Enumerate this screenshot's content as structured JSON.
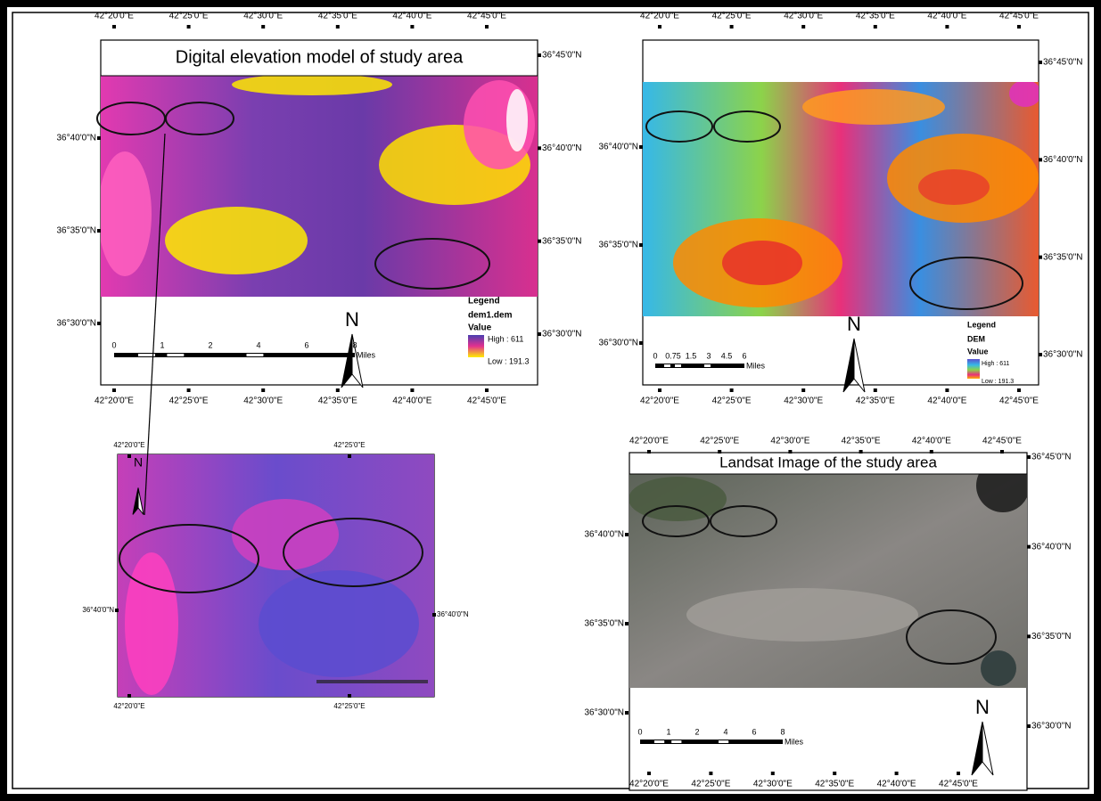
{
  "panels": [
    {
      "title": "Digital elevation model of study area",
      "top_ticks": [
        "42°20'0\"E",
        "42°25'0\"E",
        "42°30'0\"E",
        "42°35'0\"E",
        "42°40'0\"E",
        "42°45'0\"E"
      ],
      "bottom_ticks": [
        "42°20'0\"E",
        "42°25'0\"E",
        "42°30'0\"E",
        "42°35'0\"E",
        "42°40'0\"E",
        "42°45'0\"E"
      ],
      "left_ticks": [
        "36°40'0\"N",
        "36°35'0\"N",
        "36°30'0\"N"
      ],
      "right_ticks": [
        "36°45'0\"N",
        "36°40'0\"N",
        "36°35'0\"N",
        "36°30'0\"N"
      ],
      "legend": [
        "Legend",
        "dem1.dem",
        "Value",
        "High : 611",
        "Low : 191.3"
      ],
      "scale": [
        "0",
        "1",
        "2",
        "4",
        "6",
        "8",
        "Miles"
      ],
      "north": "N"
    },
    {
      "top_ticks": [
        "42°20'0\"E",
        "42°25'0\"E",
        "42°30'0\"E",
        "42°35'0\"E",
        "42°40'0\"E",
        "42°45'0\"E"
      ],
      "bottom_ticks": [
        "42°20'0\"E",
        "42°25'0\"E",
        "42°30'0\"E",
        "42°35'0\"E",
        "42°40'0\"E",
        "42°45'0\"E"
      ],
      "left_ticks": [
        "36°40'0\"N",
        "36°35'0\"N",
        "36°30'0\"N"
      ],
      "right_ticks": [
        "36°45'0\"N",
        "36°40'0\"N",
        "36°35'0\"N",
        "36°30'0\"N"
      ],
      "legend": [
        "Legend",
        "DEM",
        "Value",
        "High : 611",
        "Low : 191.3"
      ],
      "scale": [
        "0",
        "0.75",
        "1.5",
        "3",
        "4.5",
        "6",
        "Miles"
      ],
      "north": "N"
    },
    {
      "top_ticks": [
        "42°20'0\"E",
        "42°25'0\"E"
      ],
      "bottom_ticks": [
        "42°20'0\"E",
        "42°25'0\"E"
      ],
      "left_ticks": [
        "36°40'0\"N"
      ],
      "right_ticks": [
        "36°40'0\"N"
      ],
      "north": "N"
    },
    {
      "title": "Landsat Image of the study area",
      "top_ticks": [
        "42°20'0\"E",
        "42°25'0\"E",
        "42°30'0\"E",
        "42°35'0\"E",
        "42°40'0\"E",
        "42°45'0\"E"
      ],
      "bottom_ticks": [
        "42°20'0\"E",
        "42°25'0\"E",
        "42°30'0\"E",
        "42°35'0\"E",
        "42°40'0\"E",
        "42°45'0\"E"
      ],
      "left_ticks": [
        "36°40'0\"N",
        "36°35'0\"N",
        "36°30'0\"N"
      ],
      "right_ticks": [
        "36°45'0\"N",
        "36°40'0\"N",
        "36°35'0\"N",
        "36°30'0\"N"
      ],
      "scale": [
        "0",
        "1",
        "2",
        "4",
        "6",
        "8",
        "Miles"
      ],
      "north": "N"
    }
  ]
}
